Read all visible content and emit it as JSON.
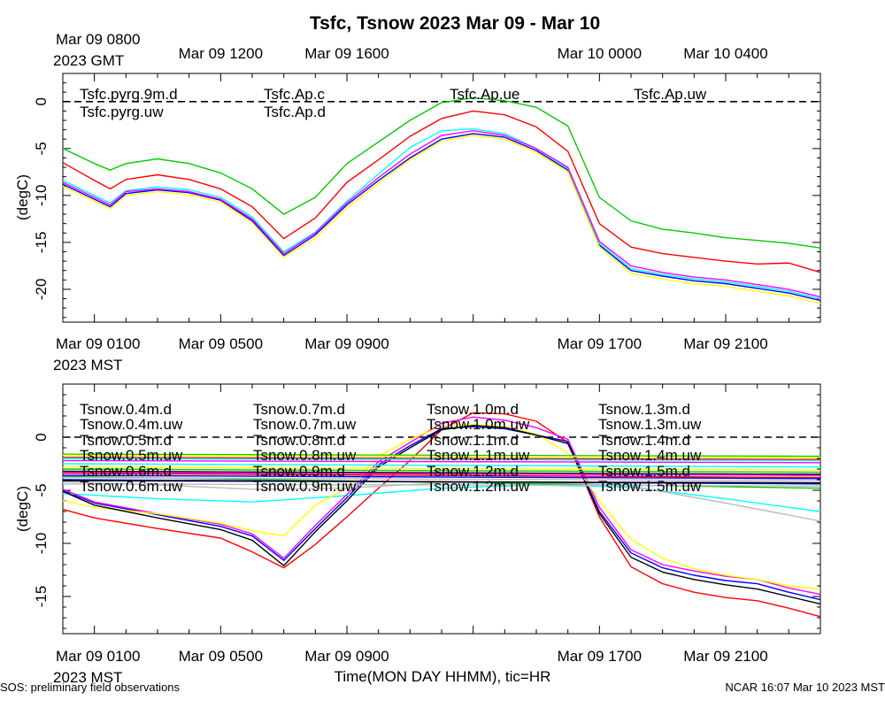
{
  "footer": {
    "left": "SOS: preliminary field observations",
    "right": "NCAR 16:07 Mar 10 2023 MST"
  },
  "chart_data": [
    {
      "type": "line",
      "title": "Tsfc, Tsnow 2023 Mar 09 - Mar 10",
      "ylabel": "(degC)",
      "xlabel": "",
      "xlim": [
        -1,
        23
      ],
      "ylim": [
        -23.5,
        3
      ],
      "yticks": [
        0,
        -5,
        -10,
        -15,
        -20
      ],
      "ytick_labels": [
        "0",
        "-5",
        "-10",
        "-15",
        "-20"
      ],
      "zero_line": 0,
      "top_axis": {
        "label_line1": "Mar 09 0800",
        "label_line2": "2023 GMT",
        "tick_labels": [
          {
            "x": 4,
            "text": "Mar 09 1200"
          },
          {
            "x": 8,
            "text": "Mar 09 1600"
          },
          {
            "x": 16,
            "text": "Mar 10 0000"
          },
          {
            "x": 20,
            "text": "Mar 10 0400"
          }
        ]
      },
      "bottom_axis": {
        "label_line1": "Mar 09 0100",
        "label_line2": "2023 MST",
        "tick_labels": [
          {
            "x": 4,
            "text": "Mar 09 0500"
          },
          {
            "x": 8,
            "text": "Mar 09 0900"
          },
          {
            "x": 16,
            "text": "Mar 09 1700"
          },
          {
            "x": 20,
            "text": "Mar 09 2100"
          }
        ]
      },
      "legend_positions": [
        [
          0,
          0
        ],
        [
          0,
          1
        ],
        [
          1,
          0
        ],
        [
          1,
          1
        ],
        [
          2,
          0
        ],
        [
          3,
          0
        ]
      ],
      "series": [
        {
          "name": "Tsfc.pyrg.9m.d",
          "color": "#ff0000",
          "x": [
            -1,
            0,
            0.5,
            1,
            2,
            3,
            4,
            5,
            6,
            7,
            8,
            9,
            10,
            11,
            12,
            13,
            14,
            15,
            16,
            17,
            18,
            19,
            20,
            21,
            22,
            23
          ],
          "y": [
            -6.5,
            -8.4,
            -9.3,
            -8.3,
            -7.8,
            -8.3,
            -9.3,
            -11.2,
            -14.6,
            -12.4,
            -8.6,
            -6.2,
            -3.7,
            -1.8,
            -1.0,
            -1.4,
            -2.7,
            -5.3,
            -13.0,
            -15.5,
            -16.2,
            -16.6,
            -17.0,
            -17.3,
            -17.2,
            -18.2
          ]
        },
        {
          "name": "Tsfc.pyrg.uw",
          "color": "#00cc00",
          "x": [
            -1,
            0,
            0.5,
            1,
            2,
            3,
            4,
            5,
            6,
            7,
            8,
            9,
            10,
            11,
            12,
            13,
            14,
            15,
            16,
            17,
            18,
            19,
            20,
            21,
            22,
            23
          ],
          "y": [
            -5.0,
            -6.6,
            -7.3,
            -6.6,
            -6.1,
            -6.6,
            -7.6,
            -9.3,
            -12.0,
            -10.2,
            -6.6,
            -4.3,
            -2.0,
            -0.1,
            0.4,
            0.1,
            -0.6,
            -2.6,
            -10.2,
            -12.7,
            -13.6,
            -14.0,
            -14.5,
            -14.8,
            -15.1,
            -15.6
          ]
        },
        {
          "name": "Tsfc.Ap.c",
          "color": "#0000ff",
          "x": [
            -1,
            0,
            0.5,
            1,
            2,
            3,
            4,
            5,
            6,
            7,
            8,
            9,
            10,
            11,
            12,
            13,
            14,
            15,
            16,
            17,
            18,
            19,
            20,
            21,
            22,
            23
          ],
          "y": [
            -8.8,
            -10.4,
            -11.2,
            -9.8,
            -9.4,
            -9.7,
            -10.5,
            -12.7,
            -16.4,
            -14.2,
            -11.0,
            -8.4,
            -6.0,
            -4.0,
            -3.4,
            -3.8,
            -5.2,
            -7.3,
            -15.3,
            -18.0,
            -18.6,
            -19.1,
            -19.4,
            -19.9,
            -20.4,
            -21.2
          ]
        },
        {
          "name": "Tsfc.Ap.d",
          "color": "#00ffff",
          "x": [
            -1,
            0,
            0.5,
            1,
            2,
            3,
            4,
            5,
            6,
            7,
            8,
            9,
            10,
            11,
            12,
            13,
            14,
            15,
            16,
            17,
            18,
            19,
            20,
            21,
            22,
            23
          ],
          "y": [
            -8.4,
            -10.0,
            -10.8,
            -9.5,
            -9.1,
            -9.4,
            -10.2,
            -12.3,
            -16.0,
            -13.9,
            -10.6,
            -7.7,
            -4.9,
            -3.1,
            -2.9,
            -3.4,
            -5.0,
            -7.1,
            -15.1,
            -17.8,
            -18.4,
            -18.9,
            -19.2,
            -19.7,
            -20.2,
            -21.0
          ]
        },
        {
          "name": "Tsfc.Ap.ue",
          "color": "#ff00ff",
          "x": [
            -1,
            0,
            0.5,
            1,
            2,
            3,
            4,
            5,
            6,
            7,
            8,
            9,
            10,
            11,
            12,
            13,
            14,
            15,
            16,
            17,
            18,
            19,
            20,
            21,
            22,
            23
          ],
          "y": [
            -8.6,
            -10.2,
            -11.0,
            -9.6,
            -9.3,
            -9.6,
            -10.4,
            -12.5,
            -16.2,
            -14.0,
            -10.8,
            -8.1,
            -5.6,
            -3.6,
            -3.1,
            -3.6,
            -5.0,
            -7.0,
            -14.9,
            -17.5,
            -18.2,
            -18.7,
            -19.0,
            -19.5,
            -20.0,
            -20.8
          ]
        },
        {
          "name": "Tsfc.Ap.uw",
          "color": "#ffff00",
          "x": [
            -1,
            0,
            0.5,
            1,
            2,
            3,
            4,
            5,
            6,
            7,
            8,
            9,
            10,
            11,
            12,
            13,
            14,
            15,
            16,
            17,
            18,
            19,
            20,
            21,
            22,
            23
          ],
          "y": [
            -9.0,
            -10.6,
            -11.4,
            -10.0,
            -9.6,
            -9.9,
            -10.7,
            -12.9,
            -16.6,
            -14.5,
            -11.3,
            -8.7,
            -6.2,
            -4.2,
            -3.6,
            -4.0,
            -5.4,
            -7.5,
            -15.5,
            -18.3,
            -18.9,
            -19.4,
            -19.7,
            -20.2,
            -20.7,
            -21.5
          ]
        }
      ]
    },
    {
      "type": "line",
      "title": "",
      "ylabel": "(degC)",
      "xlabel": "Time(MON DAY HHMM), tic=HR",
      "xlim": [
        -1,
        23
      ],
      "ylim": [
        -18.5,
        5
      ],
      "yticks": [
        0,
        -5,
        -10,
        -15
      ],
      "ytick_labels": [
        "0",
        "-5",
        "-10",
        "-15"
      ],
      "zero_line": 0,
      "bottom_axis": {
        "label_line1": "Mar 09 0100",
        "label_line2": "2023 MST",
        "tick_labels": [
          {
            "x": 4,
            "text": "Mar 09 0500"
          },
          {
            "x": 8,
            "text": "Mar 09 0900"
          },
          {
            "x": 16,
            "text": "Mar 09 1700"
          },
          {
            "x": 20,
            "text": "Mar 09 2100"
          }
        ]
      },
      "legend_positions": [
        [
          0,
          0
        ],
        [
          0,
          1
        ],
        [
          0,
          2
        ],
        [
          0,
          3
        ],
        [
          0,
          4
        ],
        [
          0,
          5
        ],
        [
          1,
          0
        ],
        [
          1,
          1
        ],
        [
          1,
          2
        ],
        [
          1,
          3
        ],
        [
          1,
          4
        ],
        [
          1,
          5
        ],
        [
          2,
          0
        ],
        [
          2,
          1
        ],
        [
          2,
          2
        ],
        [
          2,
          3
        ],
        [
          2,
          4
        ],
        [
          2,
          5
        ],
        [
          3,
          0
        ],
        [
          3,
          1
        ],
        [
          3,
          2
        ],
        [
          3,
          3
        ],
        [
          3,
          4
        ],
        [
          3,
          5
        ]
      ],
      "series": [
        {
          "name": "Tsnow.0.4m.d",
          "color": "#ff0000",
          "x": [
            -1,
            0,
            2,
            4,
            5,
            6,
            7,
            8,
            9,
            10,
            11,
            12,
            13,
            14,
            15,
            16,
            17,
            18,
            19,
            20,
            21,
            22,
            23
          ],
          "y": [
            -6.8,
            -7.6,
            -8.6,
            -9.5,
            -10.8,
            -12.3,
            -10.1,
            -7.5,
            -4.8,
            -2.2,
            0.7,
            2.3,
            2.2,
            1.5,
            -0.5,
            -7.5,
            -12.2,
            -13.8,
            -14.6,
            -15.1,
            -15.4,
            -16.1,
            -16.9
          ]
        },
        {
          "name": "Tsnow.0.4m.uw",
          "color": "#00cc00",
          "x": [
            -1,
            23
          ],
          "y": [
            -3.7,
            -4.8
          ]
        },
        {
          "name": "Tsnow.0.5m.d",
          "color": "#0000ff",
          "x": [
            -1,
            0,
            2,
            4,
            5,
            6,
            7,
            8,
            9,
            10,
            11,
            12,
            13,
            14,
            15,
            16,
            17,
            18,
            19,
            20,
            21,
            22,
            23
          ],
          "y": [
            -5.0,
            -6.2,
            -7.3,
            -8.4,
            -9.3,
            -11.6,
            -8.6,
            -5.7,
            -2.6,
            -0.8,
            0.8,
            1.0,
            0.8,
            0.2,
            -0.4,
            -7.0,
            -10.9,
            -12.3,
            -13.0,
            -13.5,
            -13.8,
            -14.6,
            -15.3
          ]
        },
        {
          "name": "Tsnow.0.5m.uw",
          "color": "#00ffff",
          "x": [
            -1,
            2,
            5,
            8,
            11,
            14,
            17,
            20,
            23
          ],
          "y": [
            -5.3,
            -5.8,
            -6.1,
            -5.5,
            -4.8,
            -4.5,
            -4.7,
            -5.8,
            -7.0
          ]
        },
        {
          "name": "Tsnow.0.6m.d",
          "color": "#ff00ff",
          "x": [
            -1,
            0,
            2,
            4,
            5,
            6,
            7,
            8,
            9,
            10,
            11,
            12,
            13,
            14,
            15,
            16,
            17,
            18,
            19,
            20,
            21,
            22,
            23
          ],
          "y": [
            -4.9,
            -6.1,
            -7.2,
            -8.2,
            -9.1,
            -11.4,
            -8.3,
            -5.4,
            -2.3,
            -0.5,
            1.3,
            1.9,
            1.6,
            0.9,
            -0.2,
            -6.6,
            -10.6,
            -12.0,
            -12.6,
            -13.1,
            -13.4,
            -14.2,
            -14.8
          ]
        },
        {
          "name": "Tsnow.0.6m.uw",
          "color": "#ffff00",
          "x": [
            -1,
            0,
            2,
            4,
            5,
            6,
            7,
            8,
            9,
            10,
            11,
            12,
            13,
            14,
            15,
            16,
            17,
            18,
            19,
            20,
            21,
            22,
            23
          ],
          "y": [
            -6.0,
            -6.6,
            -7.2,
            -8.1,
            -8.8,
            -9.3,
            -6.4,
            -4.8,
            -1.8,
            -0.2,
            1.0,
            1.2,
            1.0,
            0.3,
            -1.5,
            -6.0,
            -9.6,
            -11.4,
            -12.4,
            -13.0,
            -13.4,
            -14.0,
            -14.3
          ]
        },
        {
          "name": "Tsnow.0.7m.d",
          "color": "#bbbbbb",
          "x": [
            -1,
            2,
            5,
            8,
            11,
            14,
            17,
            20,
            23
          ],
          "y": [
            -4.2,
            -4.5,
            -4.9,
            -4.8,
            -4.3,
            -4.2,
            -4.6,
            -6.2,
            -7.9
          ]
        },
        {
          "name": "Tsnow.0.7m.uw",
          "color": "#000000",
          "x": [
            -1,
            0,
            2,
            4,
            5,
            6,
            7,
            8,
            9,
            10,
            11,
            12,
            13,
            14,
            15,
            16,
            17,
            18,
            19,
            20,
            21,
            22,
            23
          ],
          "y": [
            -5.1,
            -6.4,
            -7.6,
            -8.7,
            -9.7,
            -12.1,
            -8.9,
            -6.0,
            -2.8,
            -1.0,
            0.7,
            1.1,
            0.9,
            0.2,
            -0.6,
            -7.2,
            -11.3,
            -12.7,
            -13.4,
            -13.9,
            -14.3,
            -15.0,
            -15.7
          ]
        },
        {
          "name": "Tsnow.0.8m.d",
          "color": "#ff0000",
          "x": [
            -1,
            23
          ],
          "y": [
            -3.4,
            -3.8
          ]
        },
        {
          "name": "Tsnow.0.8m.uw",
          "color": "#00cc00",
          "x": [
            -1,
            23
          ],
          "y": [
            -3.0,
            -3.3
          ]
        },
        {
          "name": "Tsnow.0.9m.d",
          "color": "#0000ff",
          "x": [
            -1,
            23
          ],
          "y": [
            -4.0,
            -4.4
          ]
        },
        {
          "name": "Tsnow.0.9m.uw",
          "color": "#00ffff",
          "x": [
            -1,
            23
          ],
          "y": [
            -2.5,
            -2.8
          ]
        },
        {
          "name": "Tsnow.1.0m.d",
          "color": "#ff00ff",
          "x": [
            -1,
            23
          ],
          "y": [
            -2.2,
            -2.4
          ]
        },
        {
          "name": "Tsnow.1.0m.uw",
          "color": "#ffff00",
          "x": [
            -1,
            23
          ],
          "y": [
            -2.8,
            -3.1
          ]
        },
        {
          "name": "Tsnow.1.1m.d",
          "color": "#bbbbbb",
          "x": [
            -1,
            23
          ],
          "y": [
            -3.8,
            -4.1
          ]
        },
        {
          "name": "Tsnow.1.1m.uw",
          "color": "#000000",
          "x": [
            -1,
            23
          ],
          "y": [
            -3.2,
            -3.5
          ]
        },
        {
          "name": "Tsnow.1.2m.d",
          "color": "#ff0000",
          "x": [
            -1,
            23
          ],
          "y": [
            -1.9,
            -2.1
          ]
        },
        {
          "name": "Tsnow.1.2m.uw",
          "color": "#00cc00",
          "x": [
            -1,
            23
          ],
          "y": [
            -1.6,
            -1.8
          ]
        },
        {
          "name": "Tsnow.1.3m.d",
          "color": "#0000ff",
          "x": [
            -1,
            23
          ],
          "y": [
            -3.6,
            -3.9
          ]
        },
        {
          "name": "Tsnow.1.3m.uw",
          "color": "#00ffff",
          "x": [
            -1,
            23
          ],
          "y": [
            -2.0,
            -2.2
          ]
        },
        {
          "name": "Tsnow.1.4m.d",
          "color": "#ff00ff",
          "x": [
            -1,
            23
          ],
          "y": [
            -3.3,
            -3.6
          ]
        },
        {
          "name": "Tsnow.1.4m.uw",
          "color": "#ffff00",
          "x": [
            -1,
            23
          ],
          "y": [
            -1.7,
            -1.9
          ]
        },
        {
          "name": "Tsnow.1.5m.d",
          "color": "#bbbbbb",
          "x": [
            -1,
            23
          ],
          "y": [
            -4.4,
            -4.6
          ]
        },
        {
          "name": "Tsnow.1.5m.uw",
          "color": "#000000",
          "x": [
            -1,
            23
          ],
          "y": [
            -4.1,
            -4.3
          ]
        }
      ]
    }
  ]
}
